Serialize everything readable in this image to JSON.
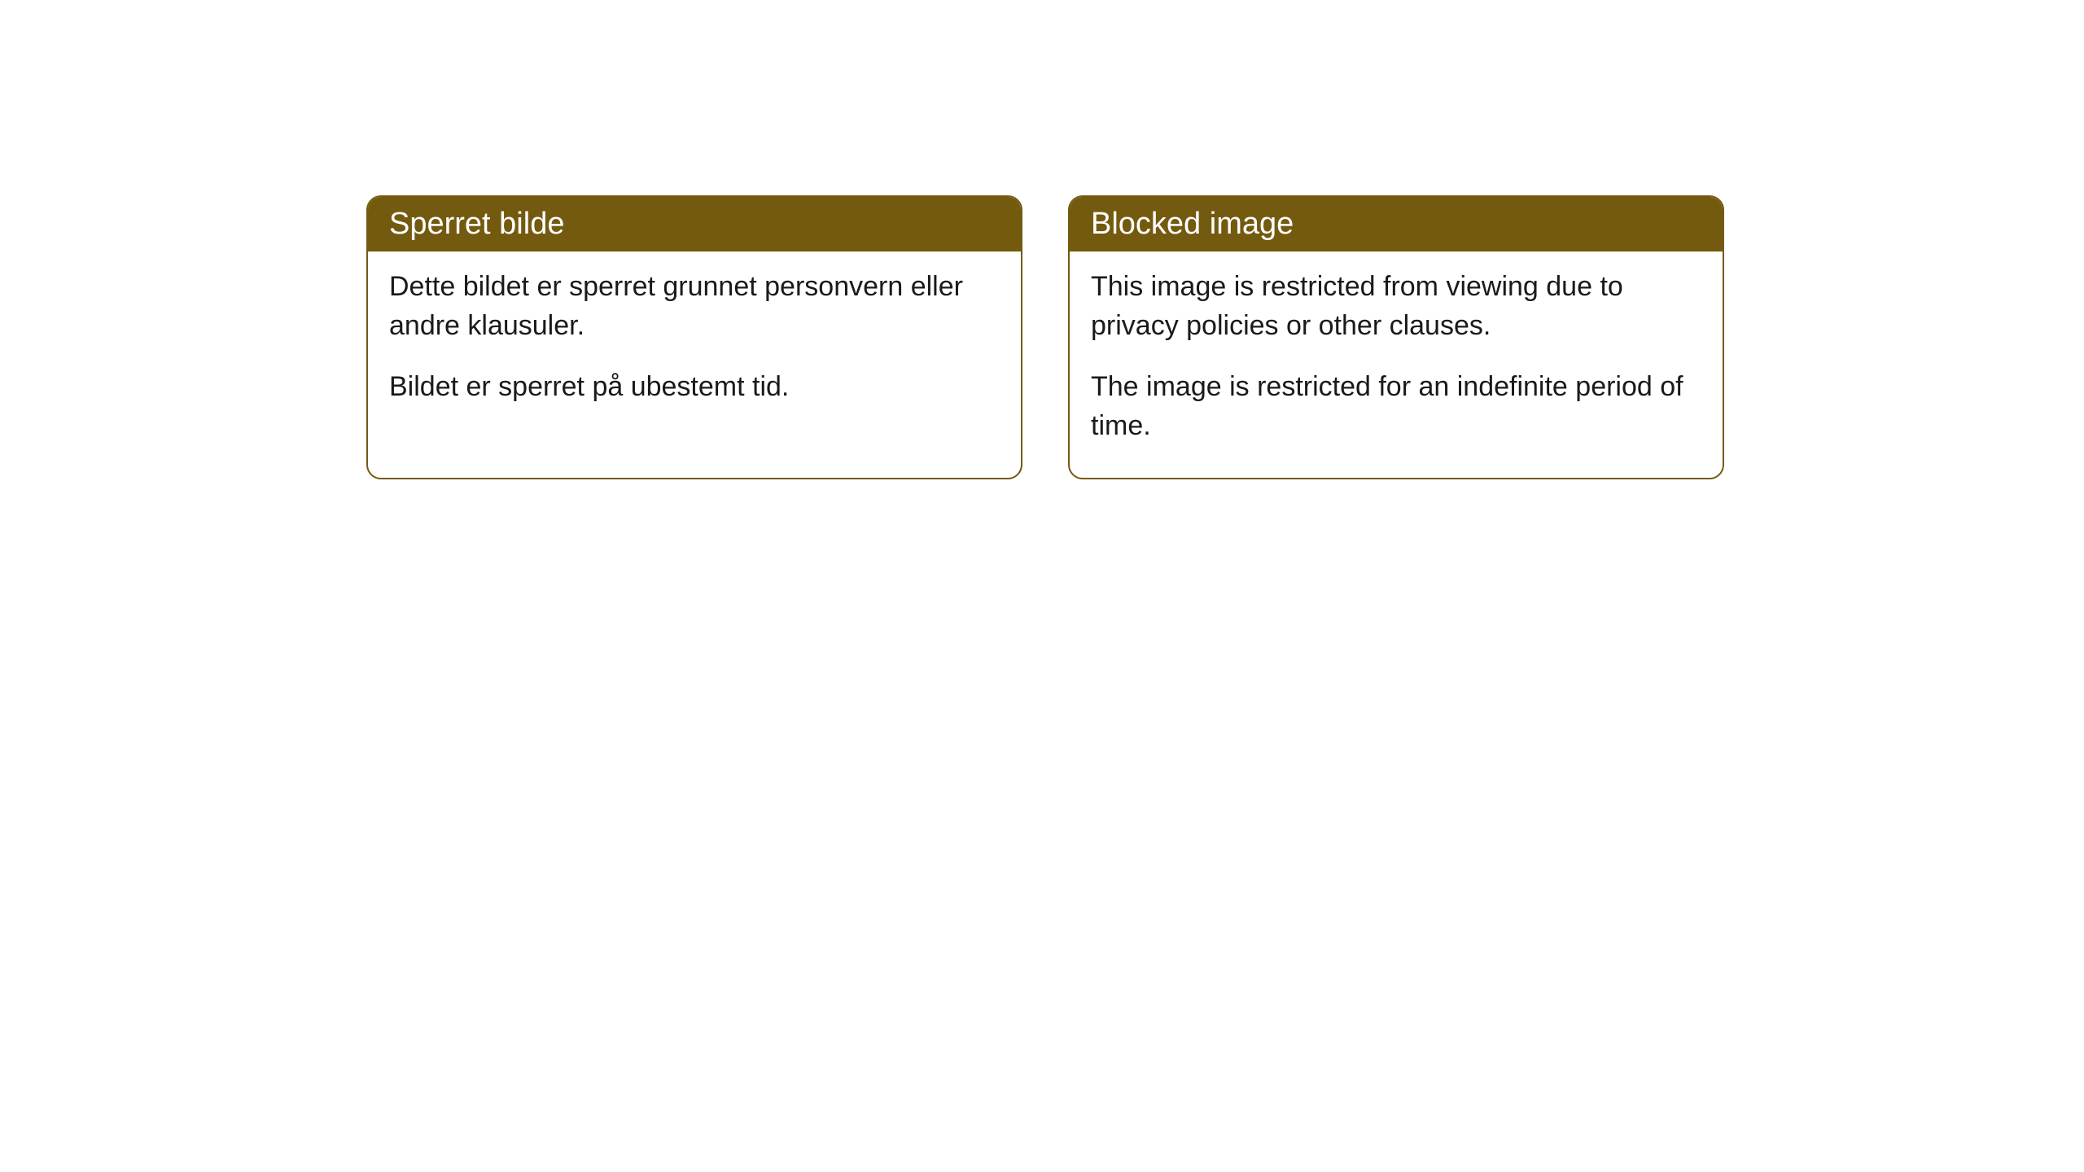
{
  "cards": [
    {
      "title": "Sperret bilde",
      "paragraph1": "Dette bildet er sperret grunnet personvern eller andre klausuler.",
      "paragraph2": "Bildet er sperret på ubestemt tid."
    },
    {
      "title": "Blocked image",
      "paragraph1": "This image is restricted from viewing due to privacy policies or other clauses.",
      "paragraph2": "The image is restricted for an indefinite period of time."
    }
  ],
  "styling": {
    "header_bg_color": "#745a0f",
    "header_text_color": "#ffffff",
    "border_color": "#745a0f",
    "body_bg_color": "#ffffff",
    "body_text_color": "#1a1a1a",
    "border_radius": 18,
    "title_fontsize": 38,
    "body_fontsize": 34
  }
}
